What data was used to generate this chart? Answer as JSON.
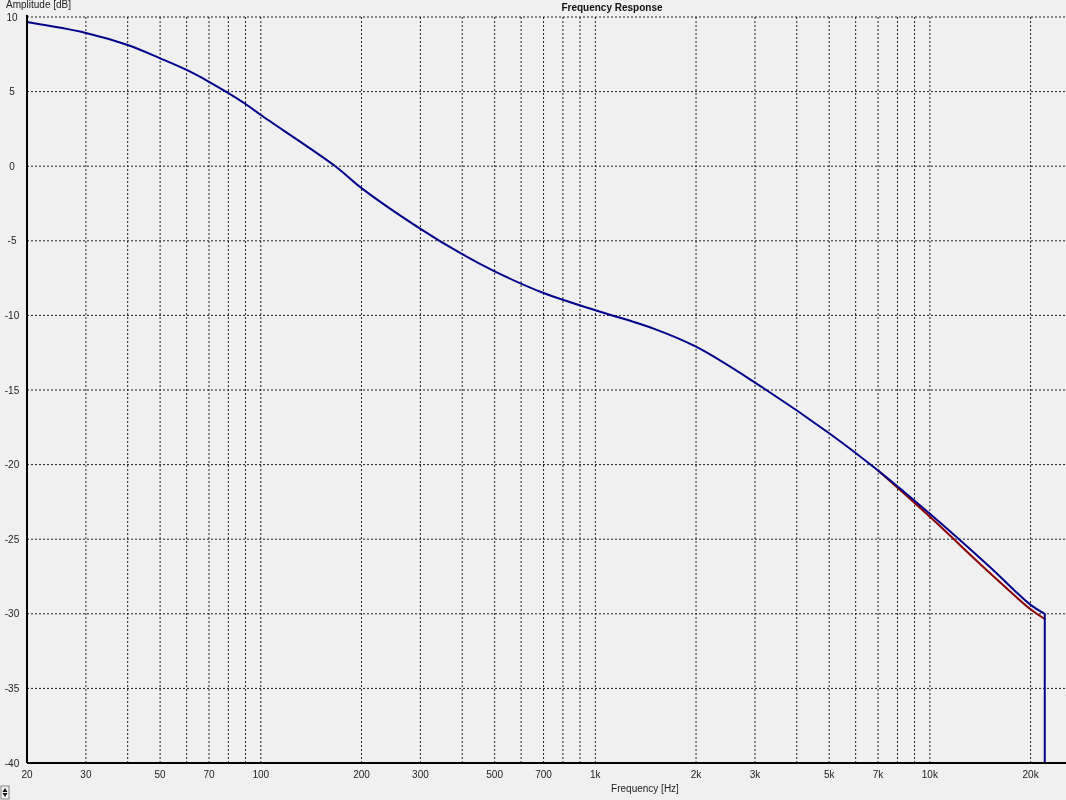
{
  "chart_data": {
    "type": "line",
    "title": "Frequency Response",
    "xlabel": "Frequency [Hz]",
    "ylabel": "Amplitude [dB]",
    "log": "x",
    "grid": true,
    "marker": "none",
    "line_style": "solid",
    "xlim": [
      20,
      25000
    ],
    "ylim": [
      -40,
      10
    ],
    "xticks": [
      20,
      30,
      {
        "value": 40,
        "label": null
      },
      50,
      {
        "value": 60,
        "label": null
      },
      70,
      {
        "value": 80,
        "label": null
      },
      {
        "value": 90,
        "label": null
      },
      100,
      200,
      300,
      {
        "value": 400,
        "label": null
      },
      500,
      {
        "value": 600,
        "label": null
      },
      700,
      {
        "value": 800,
        "label": null
      },
      {
        "value": 900,
        "label": null
      },
      {
        "value": 1000,
        "label": "1k"
      },
      {
        "value": 2000,
        "label": "2k"
      },
      {
        "value": 3000,
        "label": "3k"
      },
      {
        "value": 4000,
        "label": null
      },
      {
        "value": 5000,
        "label": "5k"
      },
      {
        "value": 6000,
        "label": null
      },
      {
        "value": 7000,
        "label": "7k"
      },
      {
        "value": 8000,
        "label": null
      },
      {
        "value": 9000,
        "label": null
      },
      {
        "value": 10000,
        "label": "10k"
      },
      {
        "value": 20000,
        "label": "20k"
      }
    ],
    "yticks": [
      -40,
      -35,
      -30,
      -25,
      -20,
      -15,
      -10,
      -5,
      0,
      5,
      10
    ],
    "series": [
      {
        "color": "#8b0000",
        "x": [
          7000,
          10000,
          15000,
          20000,
          22050
        ],
        "values": [
          -20.4,
          -23.5,
          -27.2,
          -29.7,
          -30.35
        ]
      },
      {
        "color": "#00008b",
        "x": [
          20,
          30,
          40,
          50,
          60,
          70,
          80,
          90,
          100,
          167,
          200,
          300,
          400,
          500,
          700,
          1000,
          1500,
          2000,
          3000,
          5000,
          7000,
          10000,
          15000,
          20000,
          22050,
          22050
        ],
        "values": [
          9.66,
          8.93,
          8.12,
          7.23,
          6.45,
          5.66,
          4.9,
          4.17,
          3.43,
          0,
          -1.47,
          -4.2,
          -5.9,
          -7.05,
          -8.5,
          -9.65,
          -10.9,
          -12.1,
          -14.5,
          -17.9,
          -20.4,
          -23.3,
          -26.8,
          -29.4,
          -30.0,
          -40
        ]
      }
    ]
  }
}
